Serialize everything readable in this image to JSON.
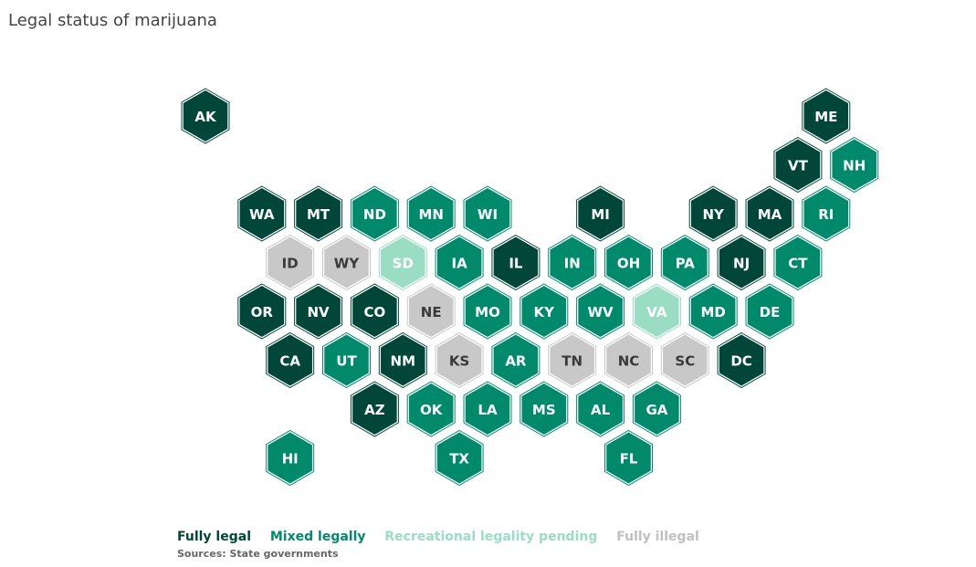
{
  "title": "Legal status of marijuana",
  "statuses": {
    "legal": {
      "label": "Fully legal",
      "color": "#00473a",
      "text": "#ffffff"
    },
    "mixed": {
      "label": "Mixed legally",
      "color": "#008a6c",
      "text": "#ffffff"
    },
    "pending": {
      "label": "Recreational legality pending",
      "color": "#99ddc4",
      "text": "#ffffff"
    },
    "illegal": {
      "label": "Fully illegal",
      "color": "#c8c8c8",
      "text": "#3a3a3a"
    }
  },
  "legend_order": [
    "legal",
    "mixed",
    "pending",
    "illegal"
  ],
  "sources": "Sources:  State governments",
  "states": [
    {
      "abbr": "AK",
      "row": 0,
      "col": 0,
      "status": "legal"
    },
    {
      "abbr": "ME",
      "row": 0,
      "col": 11,
      "status": "legal"
    },
    {
      "abbr": "VT",
      "row": 1,
      "col": 10,
      "status": "legal"
    },
    {
      "abbr": "NH",
      "row": 1,
      "col": 11,
      "status": "mixed"
    },
    {
      "abbr": "WA",
      "row": 2,
      "col": 1,
      "status": "legal"
    },
    {
      "abbr": "MT",
      "row": 2,
      "col": 2,
      "status": "legal"
    },
    {
      "abbr": "ND",
      "row": 2,
      "col": 3,
      "status": "mixed"
    },
    {
      "abbr": "MN",
      "row": 2,
      "col": 4,
      "status": "mixed"
    },
    {
      "abbr": "WI",
      "row": 2,
      "col": 5,
      "status": "mixed"
    },
    {
      "abbr": "MI",
      "row": 2,
      "col": 7,
      "status": "legal"
    },
    {
      "abbr": "NY",
      "row": 2,
      "col": 9,
      "status": "legal"
    },
    {
      "abbr": "MA",
      "row": 2,
      "col": 10,
      "status": "legal"
    },
    {
      "abbr": "RI",
      "row": 2,
      "col": 11,
      "status": "mixed"
    },
    {
      "abbr": "ID",
      "row": 3,
      "col": 1,
      "status": "illegal"
    },
    {
      "abbr": "WY",
      "row": 3,
      "col": 2,
      "status": "illegal"
    },
    {
      "abbr": "SD",
      "row": 3,
      "col": 3,
      "status": "pending"
    },
    {
      "abbr": "IA",
      "row": 3,
      "col": 4,
      "status": "mixed"
    },
    {
      "abbr": "IL",
      "row": 3,
      "col": 5,
      "status": "legal"
    },
    {
      "abbr": "IN",
      "row": 3,
      "col": 6,
      "status": "mixed"
    },
    {
      "abbr": "OH",
      "row": 3,
      "col": 7,
      "status": "mixed"
    },
    {
      "abbr": "PA",
      "row": 3,
      "col": 8,
      "status": "mixed"
    },
    {
      "abbr": "NJ",
      "row": 3,
      "col": 9,
      "status": "legal"
    },
    {
      "abbr": "CT",
      "row": 3,
      "col": 10,
      "status": "mixed"
    },
    {
      "abbr": "OR",
      "row": 4,
      "col": 1,
      "status": "legal"
    },
    {
      "abbr": "NV",
      "row": 4,
      "col": 2,
      "status": "legal"
    },
    {
      "abbr": "CO",
      "row": 4,
      "col": 3,
      "status": "legal"
    },
    {
      "abbr": "NE",
      "row": 4,
      "col": 4,
      "status": "illegal"
    },
    {
      "abbr": "MO",
      "row": 4,
      "col": 5,
      "status": "mixed"
    },
    {
      "abbr": "KY",
      "row": 4,
      "col": 6,
      "status": "mixed"
    },
    {
      "abbr": "WV",
      "row": 4,
      "col": 7,
      "status": "mixed"
    },
    {
      "abbr": "VA",
      "row": 4,
      "col": 8,
      "status": "pending"
    },
    {
      "abbr": "MD",
      "row": 4,
      "col": 9,
      "status": "mixed"
    },
    {
      "abbr": "DE",
      "row": 4,
      "col": 10,
      "status": "mixed"
    },
    {
      "abbr": "CA",
      "row": 5,
      "col": 1,
      "status": "legal"
    },
    {
      "abbr": "UT",
      "row": 5,
      "col": 2,
      "status": "mixed"
    },
    {
      "abbr": "NM",
      "row": 5,
      "col": 3,
      "status": "legal"
    },
    {
      "abbr": "KS",
      "row": 5,
      "col": 4,
      "status": "illegal"
    },
    {
      "abbr": "AR",
      "row": 5,
      "col": 5,
      "status": "mixed"
    },
    {
      "abbr": "TN",
      "row": 5,
      "col": 6,
      "status": "illegal"
    },
    {
      "abbr": "NC",
      "row": 5,
      "col": 7,
      "status": "illegal"
    },
    {
      "abbr": "SC",
      "row": 5,
      "col": 8,
      "status": "illegal"
    },
    {
      "abbr": "DC",
      "row": 5,
      "col": 9,
      "status": "legal"
    },
    {
      "abbr": "AZ",
      "row": 6,
      "col": 3,
      "status": "legal"
    },
    {
      "abbr": "OK",
      "row": 6,
      "col": 4,
      "status": "mixed"
    },
    {
      "abbr": "LA",
      "row": 6,
      "col": 5,
      "status": "mixed"
    },
    {
      "abbr": "MS",
      "row": 6,
      "col": 6,
      "status": "mixed"
    },
    {
      "abbr": "AL",
      "row": 6,
      "col": 7,
      "status": "mixed"
    },
    {
      "abbr": "GA",
      "row": 6,
      "col": 8,
      "status": "mixed"
    },
    {
      "abbr": "HI",
      "row": 7,
      "col": 1,
      "status": "mixed"
    },
    {
      "abbr": "TX",
      "row": 7,
      "col": 4,
      "status": "mixed"
    },
    {
      "abbr": "FL",
      "row": 7,
      "col": 7,
      "status": "mixed"
    }
  ]
}
